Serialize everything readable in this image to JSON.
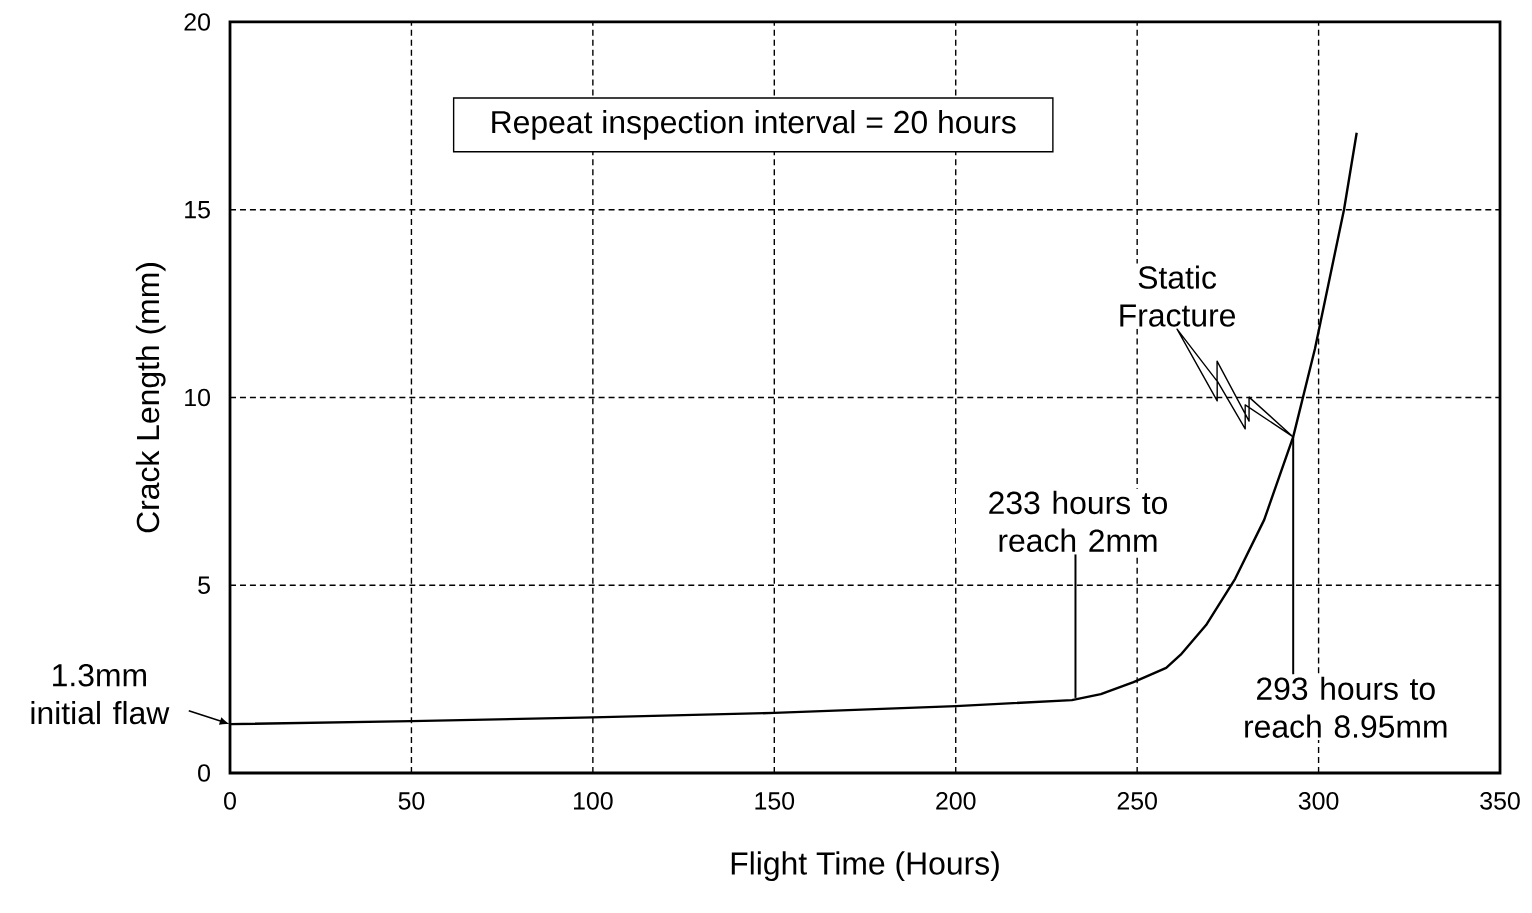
{
  "chart_data": {
    "type": "line",
    "xlabel": "Flight Time (Hours)",
    "ylabel": "Crack Length (mm)",
    "x": [
      0,
      50,
      100,
      150,
      200,
      232,
      240,
      249,
      258,
      262,
      269,
      277,
      285,
      293,
      299,
      307,
      310.5
    ],
    "series": [
      {
        "color": "#000000",
        "values": [
          1.3,
          1.38,
          1.48,
          1.6,
          1.78,
          1.94,
          2.1,
          2.42,
          2.8,
          3.15,
          3.94,
          5.17,
          6.74,
          8.95,
          11.3,
          15.0,
          17.05
        ]
      }
    ],
    "xlim": [
      0,
      350
    ],
    "ylim": [
      0,
      20
    ],
    "xticks": [
      0,
      50,
      100,
      150,
      200,
      250,
      300,
      350
    ],
    "yticks": [
      0,
      5,
      10,
      15,
      20
    ],
    "grid": true,
    "line_style": "solid",
    "marker": "none",
    "annotations": [
      "Repeat inspection interval = 20 hours",
      {
        "text": "1.3mm initial flaw",
        "x": 0,
        "y": 1.3
      },
      {
        "text": "233 hours to reach 2mm",
        "x": 233,
        "y": 2
      },
      {
        "text": "293 hours to reach 8.95mm",
        "x": 293,
        "y": 8.95
      },
      "Static Fracture"
    ]
  }
}
